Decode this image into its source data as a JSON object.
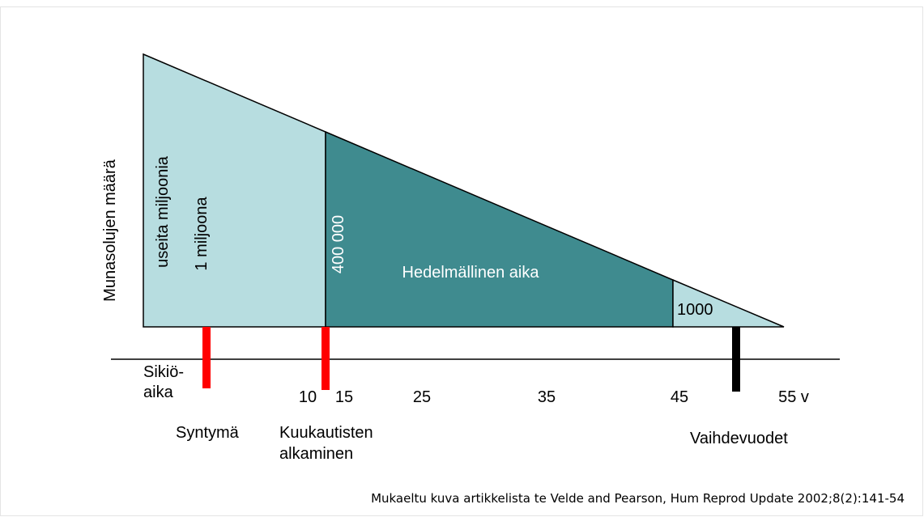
{
  "y_axis_label": "Munasolujen määrä",
  "regions": [
    {
      "labels": [
        "useita miljoonia",
        "1 miljoona"
      ]
    },
    {
      "labels": [
        "400 000",
        "Hedelmällinen aika"
      ]
    },
    {
      "labels": [
        "1000"
      ]
    }
  ],
  "start_label": [
    "Sikiö-",
    "aika"
  ],
  "x_labels": [
    "10",
    "15",
    "25",
    "35",
    "45",
    "55 v"
  ],
  "events": [
    {
      "label": [
        "Syntymä"
      ]
    },
    {
      "label": [
        "Kuukautisten",
        "alkaminen"
      ]
    },
    {
      "label": [
        "Vaihdevuodet"
      ]
    }
  ],
  "caption": "Mukaeltu kuva artikkelista te Velde and Pearson, Hum Reprod Update 2002;8(2):141-54"
}
